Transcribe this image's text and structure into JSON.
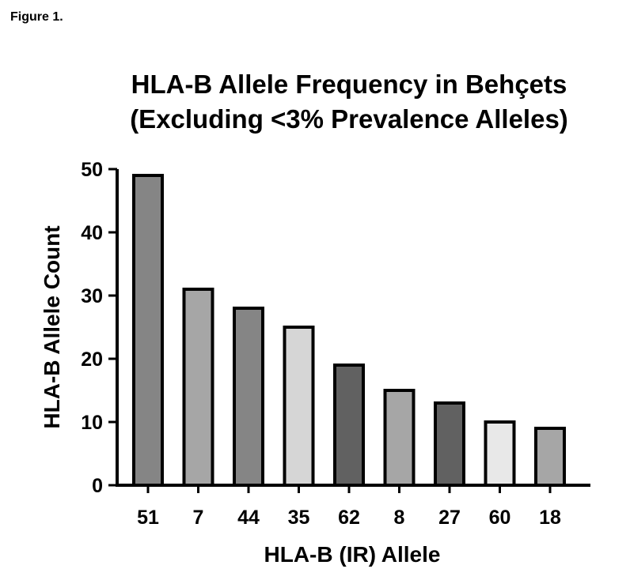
{
  "figure_label": "Figure 1.",
  "chart_data": {
    "type": "bar",
    "title": [
      "HLA-B Allele Frequency in Behçets",
      "(Excluding <3% Prevalence Alleles)"
    ],
    "xlabel": "HLA-B (IR) Allele",
    "ylabel": "HLA-B Allele Count",
    "categories": [
      "51",
      "7",
      "44",
      "35",
      "62",
      "8",
      "27",
      "60",
      "18"
    ],
    "values": [
      49,
      31,
      28,
      25,
      19,
      15,
      13,
      10,
      9
    ],
    "bar_colors": [
      "#858585",
      "#a6a6a6",
      "#858585",
      "#d6d6d6",
      "#616161",
      "#a6a6a6",
      "#616161",
      "#e8e8e8",
      "#a6a6a6"
    ],
    "bar_outline_color": "#000000",
    "ylim": [
      0,
      50
    ],
    "yticks": [
      "0",
      "10",
      "20",
      "30",
      "40",
      "50"
    ],
    "grid": false,
    "legend": "none"
  }
}
